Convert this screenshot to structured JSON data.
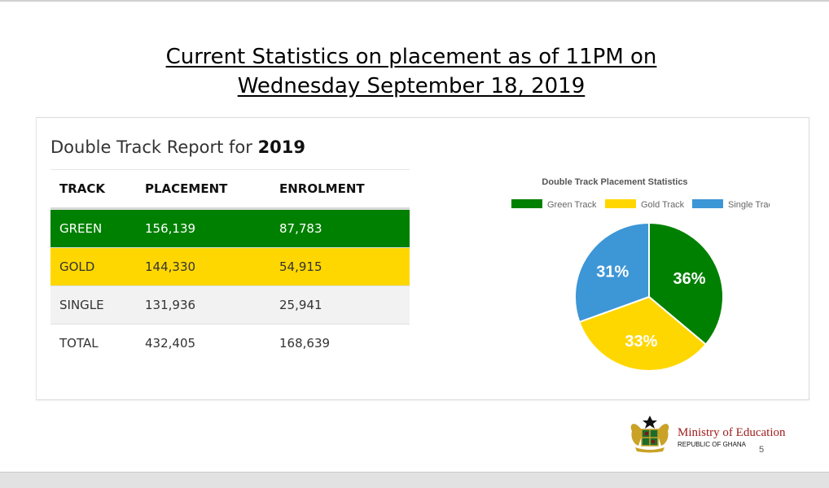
{
  "title": {
    "line1": "Current Statistics on placement as of 11PM on",
    "line2": "Wednesday September 18, 2019"
  },
  "report": {
    "heading_prefix": "Double Track Report for ",
    "heading_year": "2019"
  },
  "table": {
    "headers": [
      "TRACK",
      "PLACEMENT",
      "ENROLMENT"
    ],
    "rows": [
      {
        "track": "GREEN",
        "placement": "156,139",
        "enrolment": "87,783"
      },
      {
        "track": "GOLD",
        "placement": "144,330",
        "enrolment": "54,915"
      },
      {
        "track": "SINGLE",
        "placement": "131,936",
        "enrolment": "25,941"
      },
      {
        "track": "TOTAL",
        "placement": "432,405",
        "enrolment": "168,639"
      }
    ]
  },
  "chart_data": {
    "type": "pie",
    "title": "Double Track Placement Statistics",
    "categories": [
      "Green Track",
      "Gold Track",
      "Single Track"
    ],
    "values": [
      156139,
      144330,
      131936
    ],
    "labels": [
      "36%",
      "33%",
      "31%"
    ],
    "colors": [
      "#008000",
      "#FFD700",
      "#3D96D6"
    ],
    "legend": "top"
  },
  "footer": {
    "ministry": "Ministry of Education",
    "republic": "REPUBLIC OF GHANA",
    "page_number": "5"
  },
  "colors": {
    "green_row": "#008000",
    "gold_row": "#FFD700",
    "single_row": "#f2f2f2",
    "ministry_text": "#a01e1e"
  }
}
